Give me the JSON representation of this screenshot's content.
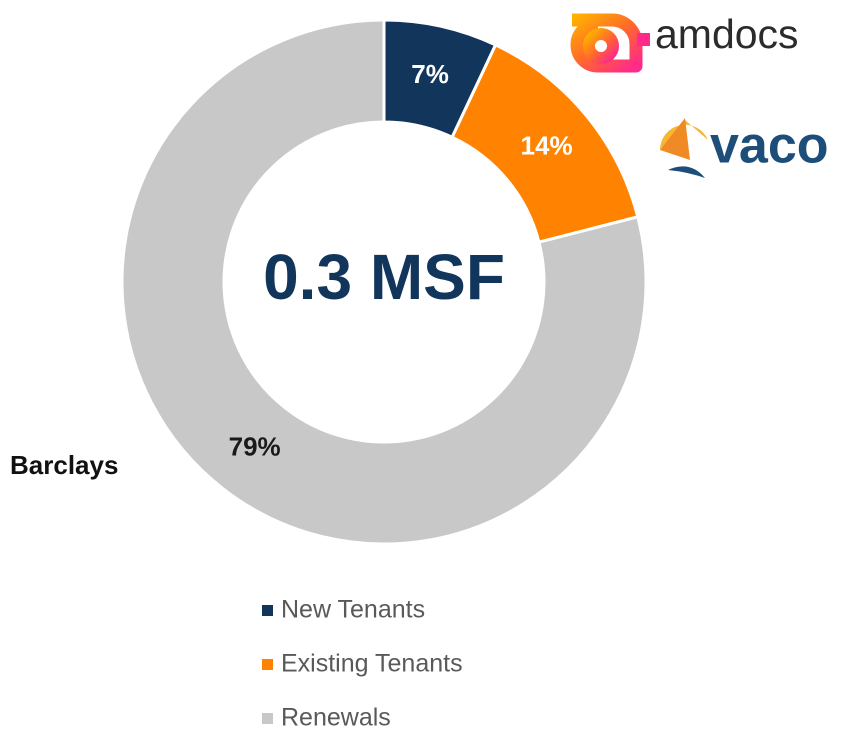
{
  "chart_data": {
    "type": "donut",
    "center_label": "0.3 MSF",
    "categories": [
      "New Tenants",
      "Existing Tenants",
      "Renewals"
    ],
    "values": [
      7,
      14,
      79
    ],
    "value_labels": [
      "7%",
      "14%",
      "79%"
    ],
    "colors": [
      "#12355b",
      "#ff8200",
      "#c8c8c8"
    ],
    "label_colors": [
      "#ffffff",
      "#ffffff",
      "#1a1a1a"
    ],
    "legend": "bottom",
    "annotations": [
      "Barclays",
      "amdocs",
      "vaco"
    ]
  }
}
